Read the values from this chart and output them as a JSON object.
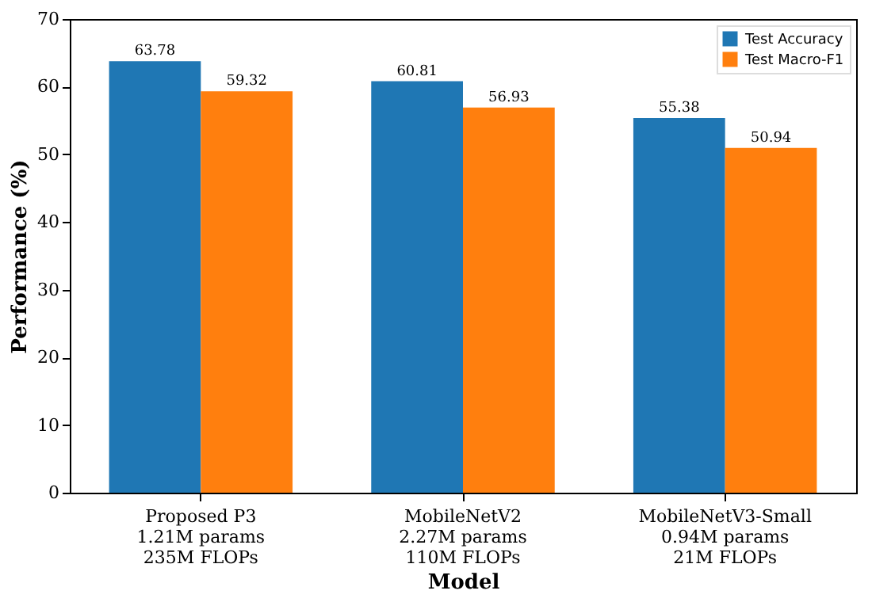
{
  "chart_data": {
    "type": "bar",
    "xlabel": "Model",
    "ylabel": "Performance (%)",
    "categories": [
      "Proposed P3\n1.21M params\n235M FLOPs",
      "MobileNetV2\n2.27M params\n110M FLOPs",
      "MobileNetV3-Small\n0.94M params\n21M FLOPs"
    ],
    "series": [
      {
        "name": "Test Accuracy",
        "color": "#1f77b4",
        "values": [
          63.78,
          60.81,
          55.38
        ]
      },
      {
        "name": "Test Macro-F1",
        "color": "#ff7f0e",
        "values": [
          59.32,
          56.93,
          50.94
        ]
      }
    ],
    "ylim": [
      0,
      70
    ],
    "yticks": [
      0,
      10,
      20,
      30,
      40,
      50,
      60,
      70
    ],
    "data_labels": true,
    "legend": "top right",
    "grid": false
  }
}
